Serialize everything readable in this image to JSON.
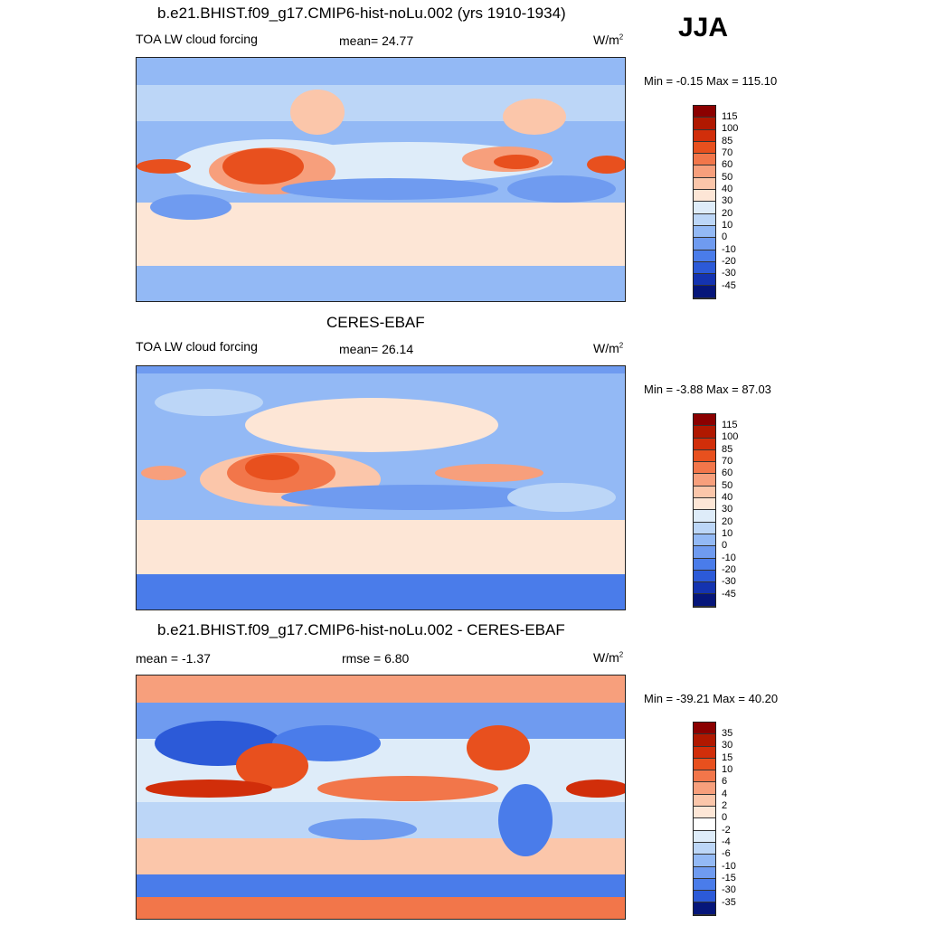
{
  "season": "JJA",
  "panels": [
    {
      "title": "b.e21.BHIST.f09_g17.CMIP6-hist-noLu.002 (yrs 1910-1934)",
      "variable": "TOA LW cloud forcing",
      "stat1_label": "",
      "stat1_value": "mean=  24.77",
      "units": "W/m",
      "units_sup": "2",
      "minmax": "Min =  -0.15 Max = 115.10",
      "colorbar_levels": [
        "115",
        "100",
        "85",
        "70",
        "60",
        "50",
        "40",
        "30",
        "20",
        "10",
        "0",
        "-10",
        "-20",
        "-30",
        "-45"
      ],
      "colorbar_colors": [
        "#8b0000",
        "#b01800",
        "#d12e0a",
        "#e8501e",
        "#f2764a",
        "#f79f7c",
        "#fbc6aa",
        "#fde6d6",
        "#deecf9",
        "#bcd6f7",
        "#93b9f5",
        "#6f9bf0",
        "#4a7cea",
        "#2c5ad8",
        "#1433b0",
        "#06167a"
      ]
    },
    {
      "title": "CERES-EBAF",
      "variable": "TOA LW cloud forcing",
      "stat1_label": "",
      "stat1_value": "mean=  26.14",
      "units": "W/m",
      "units_sup": "2",
      "minmax": "Min =  -3.88 Max =  87.03",
      "colorbar_levels": [
        "115",
        "100",
        "85",
        "70",
        "60",
        "50",
        "40",
        "30",
        "20",
        "10",
        "0",
        "-10",
        "-20",
        "-30",
        "-45"
      ],
      "colorbar_colors": [
        "#8b0000",
        "#b01800",
        "#d12e0a",
        "#e8501e",
        "#f2764a",
        "#f79f7c",
        "#fbc6aa",
        "#fde6d6",
        "#deecf9",
        "#bcd6f7",
        "#93b9f5",
        "#6f9bf0",
        "#4a7cea",
        "#2c5ad8",
        "#1433b0",
        "#06167a"
      ]
    },
    {
      "title": "b.e21.BHIST.f09_g17.CMIP6-hist-noLu.002 - CERES-EBAF",
      "variable": "mean =  -1.37",
      "stat1_label": "",
      "stat1_value": "rmse =   6.80",
      "units": "W/m",
      "units_sup": "2",
      "minmax": "Min = -39.21 Max =  40.20",
      "colorbar_levels": [
        "35",
        "30",
        "15",
        "10",
        "6",
        "4",
        "2",
        "0",
        "-2",
        "-4",
        "-6",
        "-10",
        "-15",
        "-30",
        "-35"
      ],
      "colorbar_colors": [
        "#8b0000",
        "#b01800",
        "#d12e0a",
        "#e8501e",
        "#f2764a",
        "#f79f7c",
        "#fbc6aa",
        "#fde6d6",
        "#ffffff",
        "#deecf9",
        "#bcd6f7",
        "#93b9f5",
        "#6f9bf0",
        "#4a7cea",
        "#2c5ad8",
        "#06167a"
      ]
    }
  ]
}
